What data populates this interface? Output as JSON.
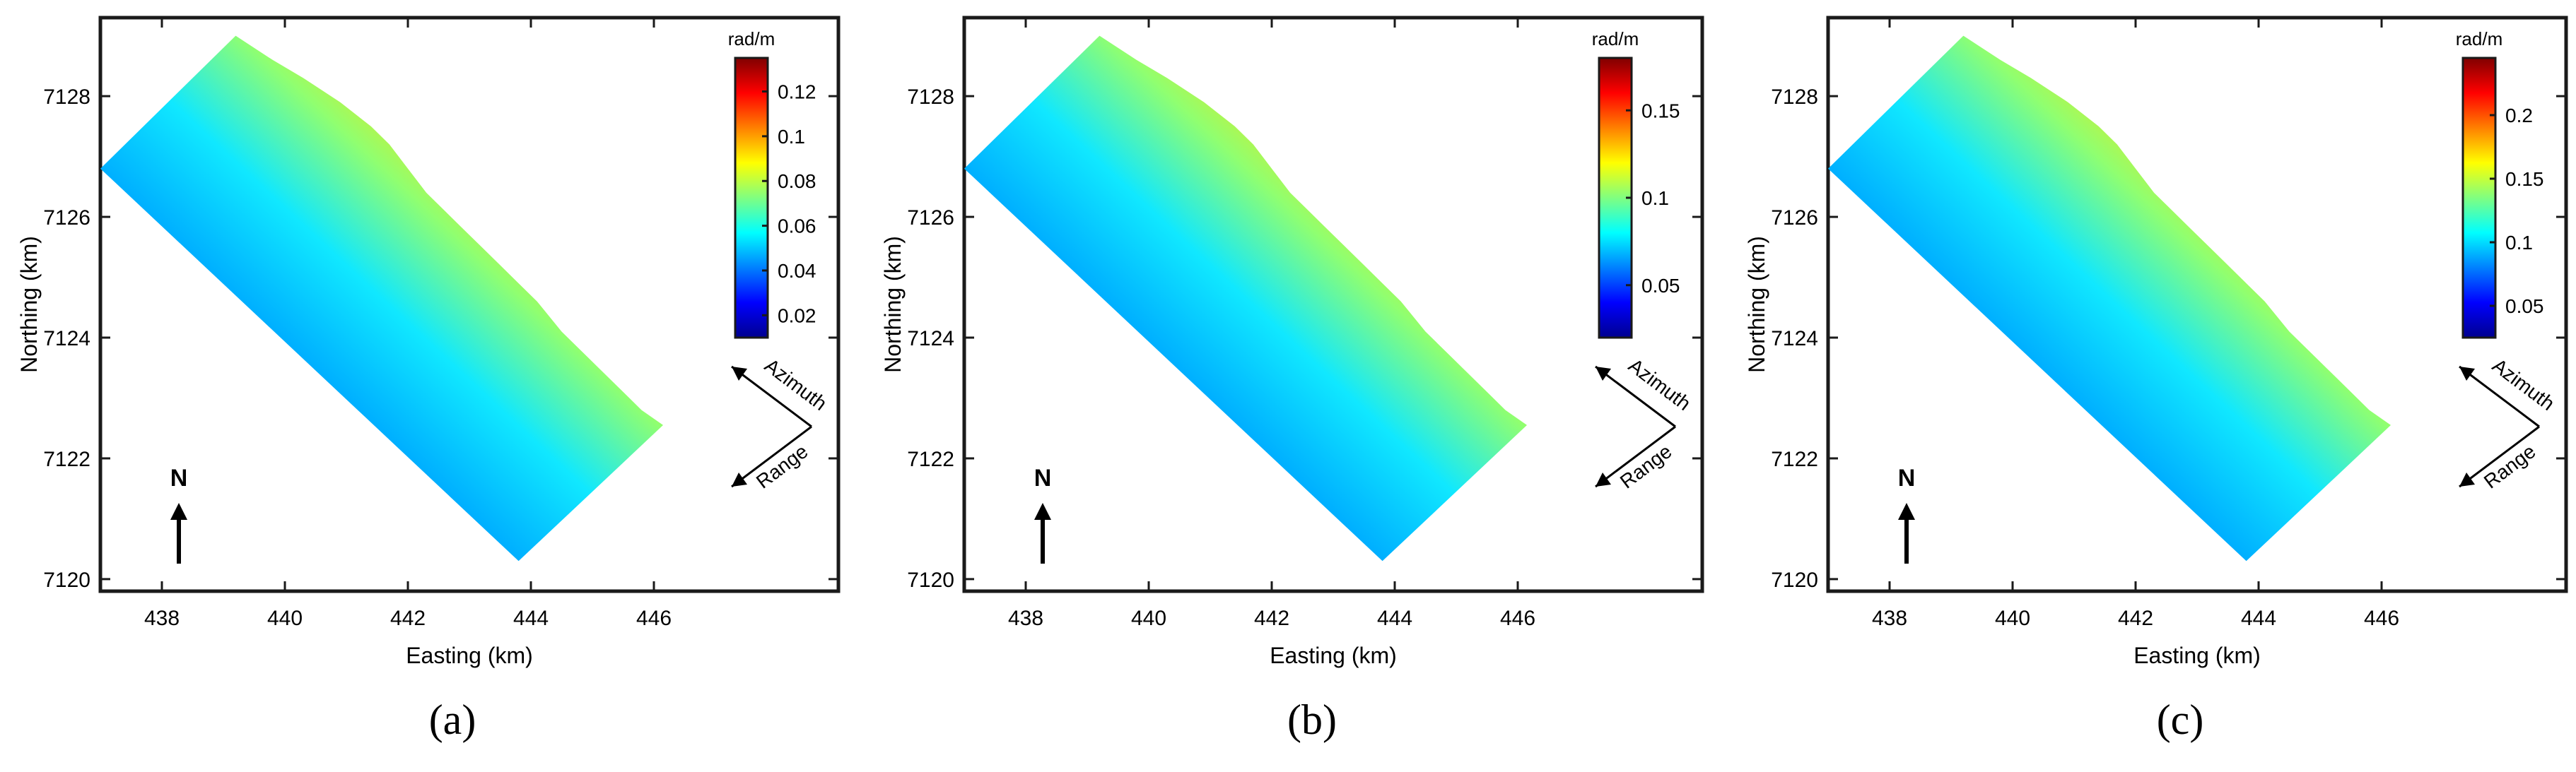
{
  "chart_data": [
    {
      "type": "heatmap",
      "panel_label": "(a)",
      "xlabel": "Easting (km)",
      "ylabel": "Northing (km)",
      "xlim": [
        437,
        449
      ],
      "ylim": [
        7119.8,
        7129.3
      ],
      "x_ticks": [
        "438",
        "440",
        "442",
        "444",
        "446"
      ],
      "y_ticks": [
        "7120",
        "7122",
        "7124",
        "7126",
        "7128"
      ],
      "colorbar": {
        "title": "rad/m",
        "min": 0.01,
        "max": 0.135,
        "ticks": [
          "0.02",
          "0.04",
          "0.06",
          "0.08",
          "0.1",
          "0.12"
        ]
      },
      "annotations": {
        "north": "N",
        "azimuth": "Azimuth",
        "range": "Range"
      }
    },
    {
      "type": "heatmap",
      "panel_label": "(b)",
      "xlabel": "Easting (km)",
      "ylabel": "Northing (km)",
      "xlim": [
        437,
        449
      ],
      "ylim": [
        7119.8,
        7129.3
      ],
      "x_ticks": [
        "438",
        "440",
        "442",
        "444",
        "446"
      ],
      "y_ticks": [
        "7120",
        "7122",
        "7124",
        "7126",
        "7128"
      ],
      "colorbar": {
        "title": "rad/m",
        "min": 0.02,
        "max": 0.18,
        "ticks": [
          "0.05",
          "0.1",
          "0.15"
        ]
      },
      "annotations": {
        "north": "N",
        "azimuth": "Azimuth",
        "range": "Range"
      }
    },
    {
      "type": "heatmap",
      "panel_label": "(c)",
      "xlabel": "Easting (km)",
      "ylabel": "Northing (km)",
      "xlim": [
        437,
        449
      ],
      "ylim": [
        7119.8,
        7129.3
      ],
      "x_ticks": [
        "438",
        "440",
        "442",
        "444",
        "446"
      ],
      "y_ticks": [
        "7120",
        "7122",
        "7124",
        "7126",
        "7128"
      ],
      "colorbar": {
        "title": "rad/m",
        "min": 0.025,
        "max": 0.245,
        "ticks": [
          "0.05",
          "0.1",
          "0.15",
          "0.2"
        ]
      },
      "annotations": {
        "north": "N",
        "azimuth": "Azimuth",
        "range": "Range"
      }
    }
  ]
}
